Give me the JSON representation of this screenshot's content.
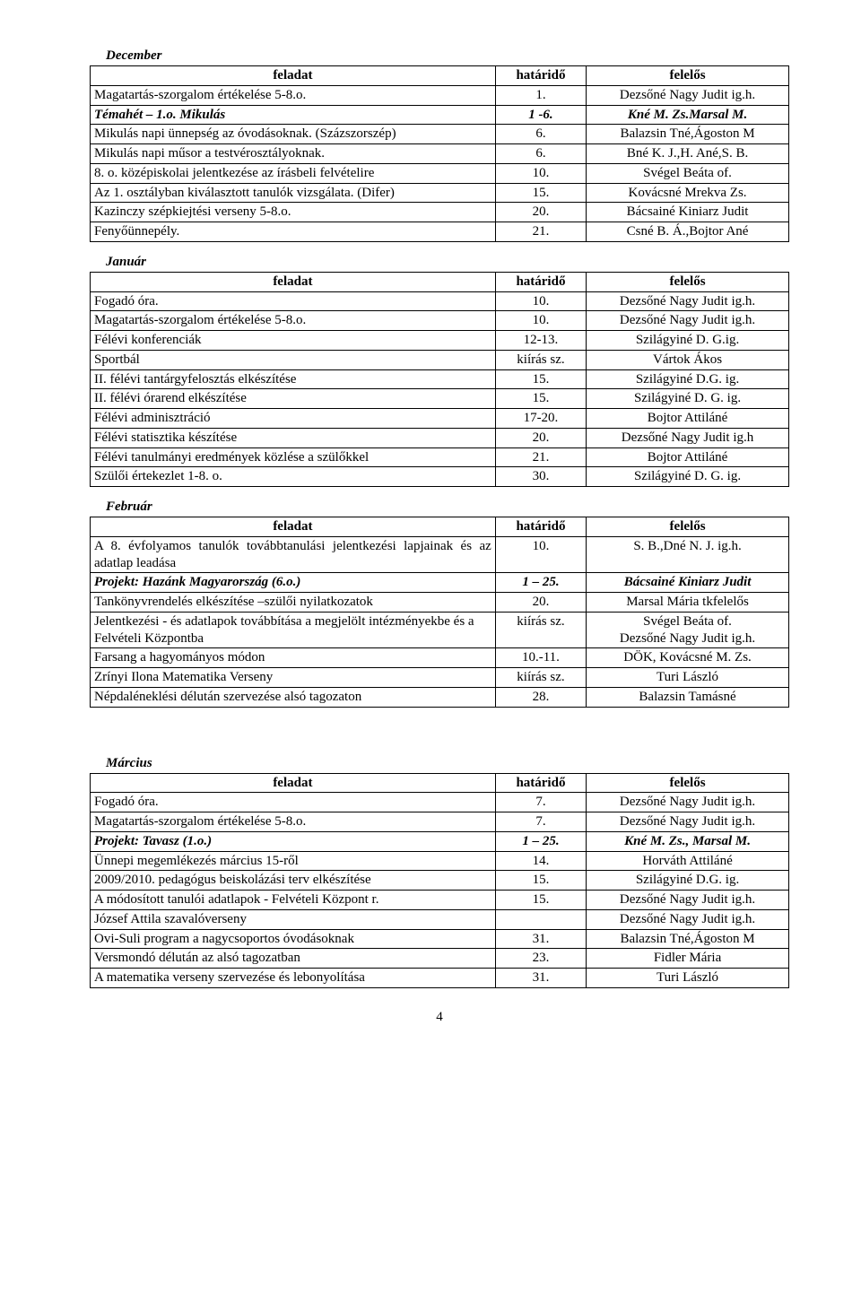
{
  "page_number": "4",
  "columns": {
    "task": "feladat",
    "deadline": "határidő",
    "responsible": "felelős"
  },
  "months": {
    "december": "December",
    "januar": "Január",
    "februar": "Február",
    "marcius": "Március"
  },
  "dec": [
    {
      "t": "Magatartás-szorgalom értékelése 5-8.o.",
      "d": "1.",
      "r": "Dezsőné Nagy Judit ig.h."
    },
    {
      "t": "Témahét – 1.o. Mikulás",
      "d": "1 -6.",
      "r": "Kné M. Zs.Marsal M.",
      "bi": true
    },
    {
      "t": "Mikulás napi ünnepség az óvodásoknak. (Százszorszép)",
      "d": "6.",
      "r": "Balazsin Tné,Ágoston M"
    },
    {
      "t": "Mikulás napi műsor a testvérosztályoknak.",
      "d": "6.",
      "r": "Bné K. J.,H. Ané,S. B."
    },
    {
      "t": "8. o. középiskolai jelentkezése az írásbeli felvételire",
      "d": "10.",
      "r": "Svégel Beáta of."
    },
    {
      "t": "Az 1. osztályban kiválasztott tanulók vizsgálata. (Difer)",
      "d": "15.",
      "r": "Kovácsné Mrekva Zs."
    },
    {
      "t": "Kazinczy szépkiejtési verseny 5-8.o.",
      "d": "20.",
      "r": "Bácsainé Kiniarz Judit"
    },
    {
      "t": "Fenyőünnepély.",
      "d": "21.",
      "r": "Csné B. Á.,Bojtor Ané"
    }
  ],
  "jan": [
    {
      "t": "Fogadó óra.",
      "d": "10.",
      "r": "Dezsőné Nagy Judit ig.h."
    },
    {
      "t": "Magatartás-szorgalom értékelése 5-8.o.",
      "d": "10.",
      "r": "Dezsőné Nagy Judit ig.h."
    },
    {
      "t": "Félévi konferenciák",
      "d": "12-13.",
      "r": "Szilágyiné D. G.ig."
    },
    {
      "t": "Sportbál",
      "d": "kiírás sz.",
      "r": "Vártok Ákos"
    },
    {
      "t": "II. félévi tantárgyfelosztás elkészítése",
      "d": "15.",
      "r": "Szilágyiné D.G. ig."
    },
    {
      "t": "II. félévi órarend elkészítése",
      "d": "15.",
      "r": "Szilágyiné D. G. ig."
    },
    {
      "t": "Félévi adminisztráció",
      "d": "17-20.",
      "r": "Bojtor Attiláné"
    },
    {
      "t": "Félévi statisztika készítése",
      "d": "20.",
      "r": "Dezsőné Nagy Judit ig.h"
    },
    {
      "t": "Félévi tanulmányi eredmények közlése a szülőkkel",
      "d": "21.",
      "r": "Bojtor Attiláné"
    },
    {
      "t": "Szülői értekezlet 1-8. o.",
      "d": "30.",
      "r": "Szilágyiné D. G. ig."
    }
  ],
  "feb": [
    {
      "t": "A 8. évfolyamos tanulók továbbtanulási jelentkezési lapjainak és az adatlap leadása",
      "d": "10.",
      "r": "S. B.,Dné N. J. ig.h.",
      "just": true
    },
    {
      "t": "Projekt: Hazánk Magyarország (6.o.)",
      "d": "1 – 25.",
      "r": "Bácsainé Kiniarz Judit",
      "bi": true
    },
    {
      "t": "Tankönyvrendelés elkészítése –szülői nyilatkozatok",
      "d": "20.",
      "r": "Marsal Mária tkfelelős"
    },
    {
      "t": "Jelentkezési - és adatlapok továbbítása a megjelölt intézményekbe és a Felvételi Központba",
      "d": "kiírás sz.",
      "r": "Svégel Beáta of.\nDezsőné Nagy Judit ig.h."
    },
    {
      "t": "Farsang a hagyományos módon",
      "d": "10.-11.",
      "r": "DÖK, Kovácsné M. Zs."
    },
    {
      "t": "Zrínyi Ilona Matematika Verseny",
      "d": "kiírás sz.",
      "r": "Turi László"
    },
    {
      "t": "Népdaléneklési délután szervezése alsó tagozaton",
      "d": "28.",
      "r": "Balazsin Tamásné"
    }
  ],
  "mar": [
    {
      "t": "Fogadó óra.",
      "d": "7.",
      "r": "Dezsőné Nagy Judit ig.h."
    },
    {
      "t": "Magatartás-szorgalom értékelése 5-8.o.",
      "d": "7.",
      "r": "Dezsőné Nagy Judit ig.h."
    },
    {
      "t": "Projekt: Tavasz (1.o.)",
      "d": "1 – 25.",
      "r": "Kné M. Zs., Marsal M.",
      "bi": true
    },
    {
      "t": "Ünnepi megemlékezés március 15-ről",
      "d": "14.",
      "r": "Horváth Attiláné"
    },
    {
      "t": "2009/2010. pedagógus beiskolázási terv elkészítése",
      "d": "15.",
      "r": "Szilágyiné D.G. ig."
    },
    {
      "t": "A módosított tanulói adatlapok - Felvételi Központ r.",
      "d": "15.",
      "r": "Dezsőné Nagy Judit ig.h."
    },
    {
      "t": "József Attila szavalóverseny",
      "d": "",
      "r": "Dezsőné Nagy Judit ig.h."
    },
    {
      "t": "Ovi-Suli program a nagycsoportos óvodásoknak",
      "d": "31.",
      "r": "Balazsin Tné,Ágoston M"
    },
    {
      "t": "Versmondó délután az alsó tagozatban",
      "d": "23.",
      "r": "Fidler Mária"
    },
    {
      "t": "A matematika verseny szervezése és lebonyolítása",
      "d": "31.",
      "r": "Turi László"
    }
  ]
}
